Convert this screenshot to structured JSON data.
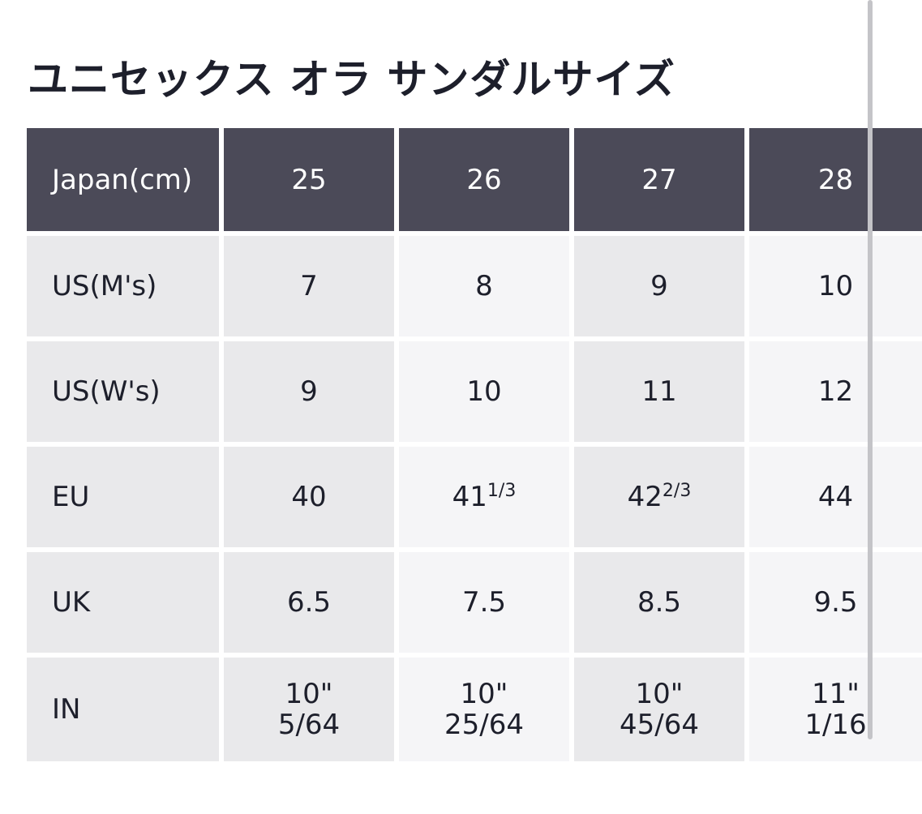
{
  "title": "ユニセックス オラ サンダルサイズ",
  "table": {
    "header": {
      "label": "Japan(cm)",
      "values": [
        "25",
        "26",
        "27",
        "28"
      ]
    },
    "rows": [
      {
        "label": "US(M's)",
        "values": [
          "7",
          "8",
          "9",
          "10"
        ]
      },
      {
        "label": "US(W's)",
        "values": [
          "9",
          "10",
          "11",
          "12"
        ]
      },
      {
        "label": "EU",
        "values": [
          "40",
          "41",
          "42",
          "44"
        ],
        "fractions": [
          "",
          "1/3",
          "2/3",
          ""
        ]
      },
      {
        "label": "UK",
        "values": [
          "6.5",
          "7.5",
          "8.5",
          "9.5"
        ]
      },
      {
        "label": "IN",
        "values": [
          "10\"",
          "10\"",
          "10\"",
          "11\""
        ],
        "sub_values": [
          "5/64",
          "25/64",
          "45/64",
          "1/16"
        ]
      }
    ]
  }
}
